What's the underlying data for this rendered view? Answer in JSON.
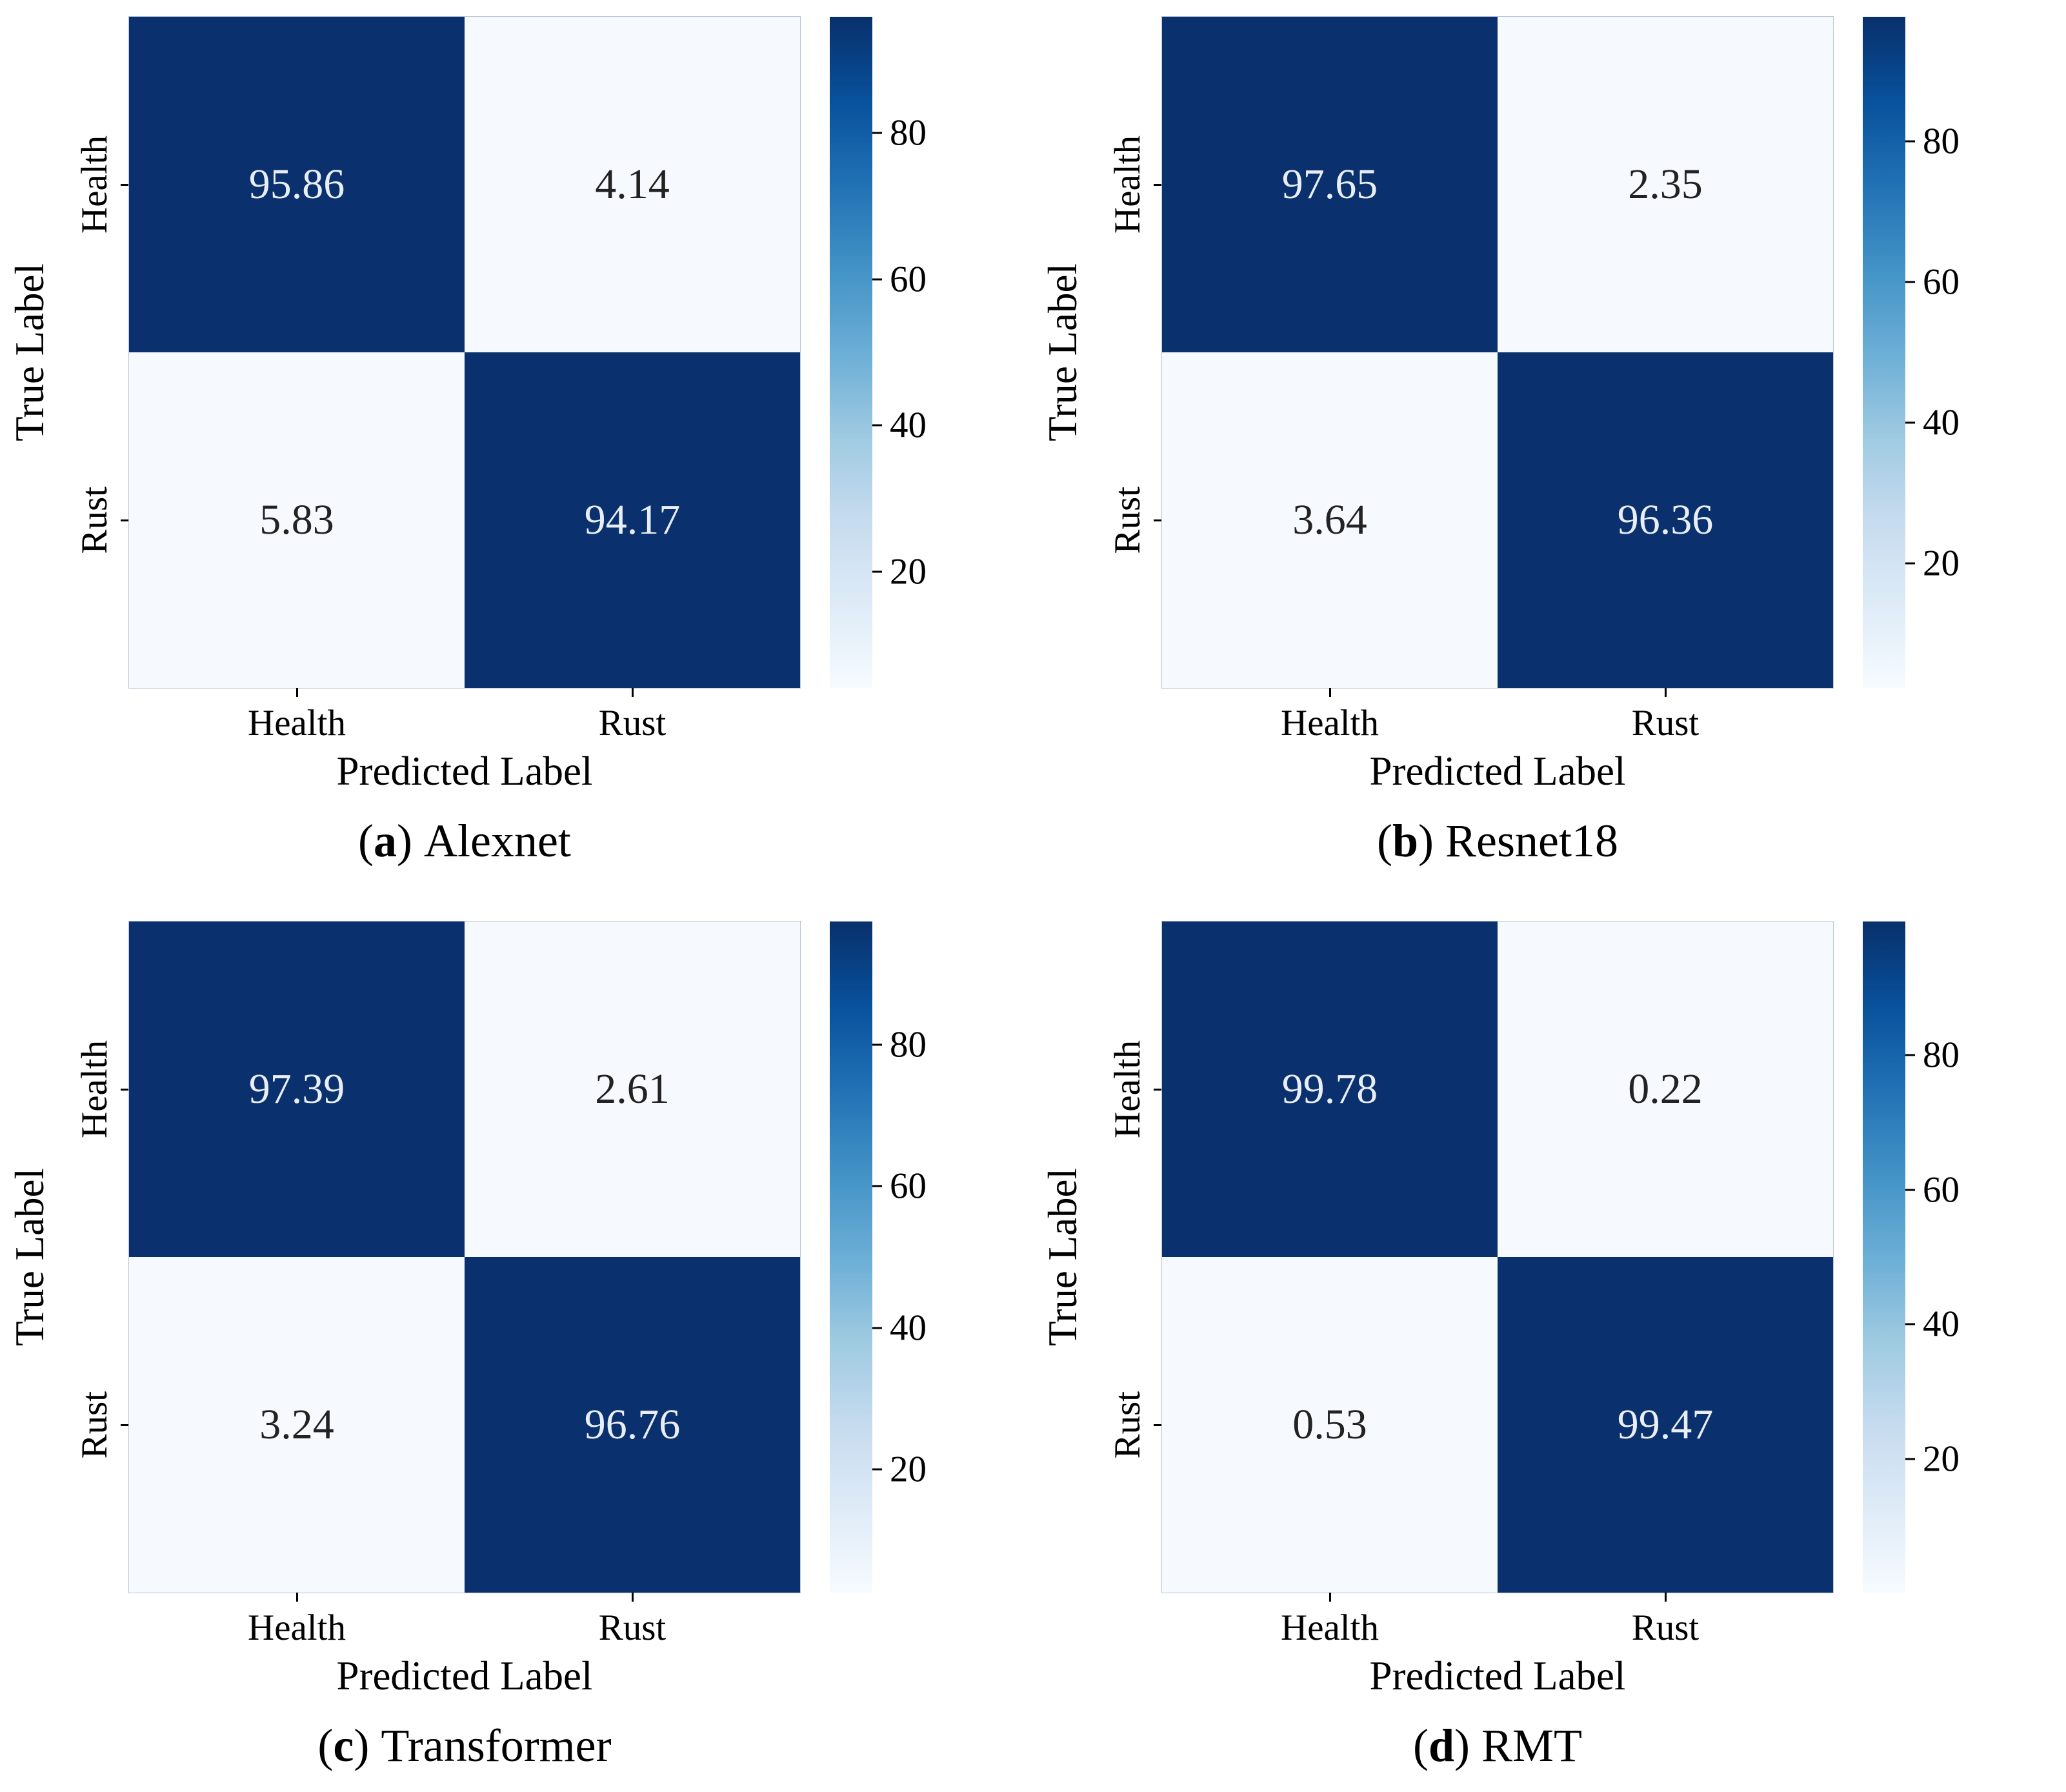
{
  "figure": {
    "description": "Four confusion matrices comparing classification models",
    "class_labels": [
      "Health",
      "Rust"
    ],
    "axis_labels": {
      "x": "Predicted Label",
      "y": "True Label"
    }
  },
  "colors": {
    "background": "#ffffff",
    "cell_dark": "#0a316e",
    "cell_light": "#f6f9fe",
    "text_on_dark": "#e9edf4",
    "text_on_light": "#222222",
    "tick_color": "#000000",
    "colormap_stops": [
      "#08306b",
      "#08519c",
      "#2171b5",
      "#4292c6",
      "#6baed6",
      "#9ecae1",
      "#c6dbef",
      "#deebf7",
      "#f7fbff"
    ]
  },
  "chart_data": [
    {
      "type": "heatmap",
      "caption": {
        "open": "(",
        "letter": "a",
        "close": ")",
        "model": "Alexnet"
      },
      "x_categories": [
        "Health",
        "Rust"
      ],
      "y_categories": [
        "Health",
        "Rust"
      ],
      "xlabel": "Predicted Label",
      "ylabel": "True Label",
      "matrix": [
        [
          95.86,
          4.14
        ],
        [
          5.83,
          94.17
        ]
      ],
      "vmin": 4.14,
      "vmax": 95.86,
      "colorbar_ticks": [
        80,
        60,
        40,
        20
      ],
      "colormap": "Blues",
      "legend_position": "right-colorbar"
    },
    {
      "type": "heatmap",
      "caption": {
        "open": "(",
        "letter": "b",
        "close": ")",
        "model": "Resnet18"
      },
      "x_categories": [
        "Health",
        "Rust"
      ],
      "y_categories": [
        "Health",
        "Rust"
      ],
      "xlabel": "Predicted Label",
      "ylabel": "True Label",
      "matrix": [
        [
          97.65,
          2.35
        ],
        [
          3.64,
          96.36
        ]
      ],
      "vmin": 2.35,
      "vmax": 97.65,
      "colorbar_ticks": [
        80,
        60,
        40,
        20
      ],
      "colormap": "Blues",
      "legend_position": "right-colorbar"
    },
    {
      "type": "heatmap",
      "caption": {
        "open": "(",
        "letter": "c",
        "close": ")",
        "model": "Transformer"
      },
      "x_categories": [
        "Health",
        "Rust"
      ],
      "y_categories": [
        "Health",
        "Rust"
      ],
      "xlabel": "Predicted Label",
      "ylabel": "True Label",
      "matrix": [
        [
          97.39,
          2.61
        ],
        [
          3.24,
          96.76
        ]
      ],
      "vmin": 2.61,
      "vmax": 97.39,
      "colorbar_ticks": [
        80,
        60,
        40,
        20
      ],
      "colormap": "Blues",
      "legend_position": "right-colorbar"
    },
    {
      "type": "heatmap",
      "caption": {
        "open": "(",
        "letter": "d",
        "close": ")",
        "model": "RMT"
      },
      "x_categories": [
        "Health",
        "Rust"
      ],
      "y_categories": [
        "Health",
        "Rust"
      ],
      "xlabel": "Predicted Label",
      "ylabel": "True Label",
      "matrix": [
        [
          99.78,
          0.22
        ],
        [
          0.53,
          99.47
        ]
      ],
      "vmin": 0.22,
      "vmax": 99.78,
      "colorbar_ticks": [
        80,
        60,
        40,
        20
      ],
      "colormap": "Blues",
      "legend_position": "right-colorbar"
    }
  ]
}
